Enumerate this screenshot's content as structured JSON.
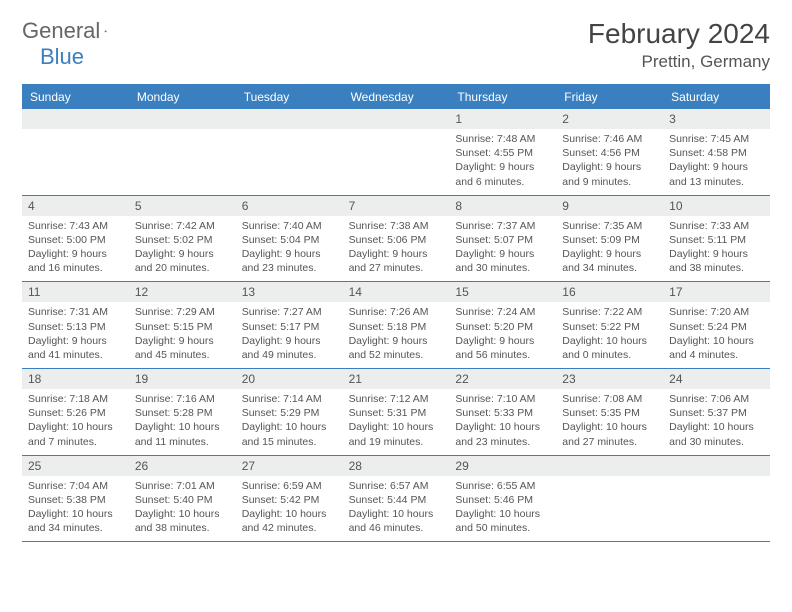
{
  "logo": {
    "text1": "General",
    "text2": "Blue"
  },
  "title": {
    "month": "February 2024",
    "location": "Prettin, Germany"
  },
  "colors": {
    "accent": "#3a7fbf",
    "headerRow": "#eceded",
    "text": "#555555",
    "bg": "#ffffff"
  },
  "dayNames": [
    "Sunday",
    "Monday",
    "Tuesday",
    "Wednesday",
    "Thursday",
    "Friday",
    "Saturday"
  ],
  "weeks": [
    [
      {
        "n": "",
        "l1": "",
        "l2": "",
        "l3": "",
        "l4": ""
      },
      {
        "n": "",
        "l1": "",
        "l2": "",
        "l3": "",
        "l4": ""
      },
      {
        "n": "",
        "l1": "",
        "l2": "",
        "l3": "",
        "l4": ""
      },
      {
        "n": "",
        "l1": "",
        "l2": "",
        "l3": "",
        "l4": ""
      },
      {
        "n": "1",
        "l1": "Sunrise: 7:48 AM",
        "l2": "Sunset: 4:55 PM",
        "l3": "Daylight: 9 hours",
        "l4": "and 6 minutes."
      },
      {
        "n": "2",
        "l1": "Sunrise: 7:46 AM",
        "l2": "Sunset: 4:56 PM",
        "l3": "Daylight: 9 hours",
        "l4": "and 9 minutes."
      },
      {
        "n": "3",
        "l1": "Sunrise: 7:45 AM",
        "l2": "Sunset: 4:58 PM",
        "l3": "Daylight: 9 hours",
        "l4": "and 13 minutes."
      }
    ],
    [
      {
        "n": "4",
        "l1": "Sunrise: 7:43 AM",
        "l2": "Sunset: 5:00 PM",
        "l3": "Daylight: 9 hours",
        "l4": "and 16 minutes."
      },
      {
        "n": "5",
        "l1": "Sunrise: 7:42 AM",
        "l2": "Sunset: 5:02 PM",
        "l3": "Daylight: 9 hours",
        "l4": "and 20 minutes."
      },
      {
        "n": "6",
        "l1": "Sunrise: 7:40 AM",
        "l2": "Sunset: 5:04 PM",
        "l3": "Daylight: 9 hours",
        "l4": "and 23 minutes."
      },
      {
        "n": "7",
        "l1": "Sunrise: 7:38 AM",
        "l2": "Sunset: 5:06 PM",
        "l3": "Daylight: 9 hours",
        "l4": "and 27 minutes."
      },
      {
        "n": "8",
        "l1": "Sunrise: 7:37 AM",
        "l2": "Sunset: 5:07 PM",
        "l3": "Daylight: 9 hours",
        "l4": "and 30 minutes."
      },
      {
        "n": "9",
        "l1": "Sunrise: 7:35 AM",
        "l2": "Sunset: 5:09 PM",
        "l3": "Daylight: 9 hours",
        "l4": "and 34 minutes."
      },
      {
        "n": "10",
        "l1": "Sunrise: 7:33 AM",
        "l2": "Sunset: 5:11 PM",
        "l3": "Daylight: 9 hours",
        "l4": "and 38 minutes."
      }
    ],
    [
      {
        "n": "11",
        "l1": "Sunrise: 7:31 AM",
        "l2": "Sunset: 5:13 PM",
        "l3": "Daylight: 9 hours",
        "l4": "and 41 minutes."
      },
      {
        "n": "12",
        "l1": "Sunrise: 7:29 AM",
        "l2": "Sunset: 5:15 PM",
        "l3": "Daylight: 9 hours",
        "l4": "and 45 minutes."
      },
      {
        "n": "13",
        "l1": "Sunrise: 7:27 AM",
        "l2": "Sunset: 5:17 PM",
        "l3": "Daylight: 9 hours",
        "l4": "and 49 minutes."
      },
      {
        "n": "14",
        "l1": "Sunrise: 7:26 AM",
        "l2": "Sunset: 5:18 PM",
        "l3": "Daylight: 9 hours",
        "l4": "and 52 minutes."
      },
      {
        "n": "15",
        "l1": "Sunrise: 7:24 AM",
        "l2": "Sunset: 5:20 PM",
        "l3": "Daylight: 9 hours",
        "l4": "and 56 minutes."
      },
      {
        "n": "16",
        "l1": "Sunrise: 7:22 AM",
        "l2": "Sunset: 5:22 PM",
        "l3": "Daylight: 10 hours",
        "l4": "and 0 minutes."
      },
      {
        "n": "17",
        "l1": "Sunrise: 7:20 AM",
        "l2": "Sunset: 5:24 PM",
        "l3": "Daylight: 10 hours",
        "l4": "and 4 minutes."
      }
    ],
    [
      {
        "n": "18",
        "l1": "Sunrise: 7:18 AM",
        "l2": "Sunset: 5:26 PM",
        "l3": "Daylight: 10 hours",
        "l4": "and 7 minutes."
      },
      {
        "n": "19",
        "l1": "Sunrise: 7:16 AM",
        "l2": "Sunset: 5:28 PM",
        "l3": "Daylight: 10 hours",
        "l4": "and 11 minutes."
      },
      {
        "n": "20",
        "l1": "Sunrise: 7:14 AM",
        "l2": "Sunset: 5:29 PM",
        "l3": "Daylight: 10 hours",
        "l4": "and 15 minutes."
      },
      {
        "n": "21",
        "l1": "Sunrise: 7:12 AM",
        "l2": "Sunset: 5:31 PM",
        "l3": "Daylight: 10 hours",
        "l4": "and 19 minutes."
      },
      {
        "n": "22",
        "l1": "Sunrise: 7:10 AM",
        "l2": "Sunset: 5:33 PM",
        "l3": "Daylight: 10 hours",
        "l4": "and 23 minutes."
      },
      {
        "n": "23",
        "l1": "Sunrise: 7:08 AM",
        "l2": "Sunset: 5:35 PM",
        "l3": "Daylight: 10 hours",
        "l4": "and 27 minutes."
      },
      {
        "n": "24",
        "l1": "Sunrise: 7:06 AM",
        "l2": "Sunset: 5:37 PM",
        "l3": "Daylight: 10 hours",
        "l4": "and 30 minutes."
      }
    ],
    [
      {
        "n": "25",
        "l1": "Sunrise: 7:04 AM",
        "l2": "Sunset: 5:38 PM",
        "l3": "Daylight: 10 hours",
        "l4": "and 34 minutes."
      },
      {
        "n": "26",
        "l1": "Sunrise: 7:01 AM",
        "l2": "Sunset: 5:40 PM",
        "l3": "Daylight: 10 hours",
        "l4": "and 38 minutes."
      },
      {
        "n": "27",
        "l1": "Sunrise: 6:59 AM",
        "l2": "Sunset: 5:42 PM",
        "l3": "Daylight: 10 hours",
        "l4": "and 42 minutes."
      },
      {
        "n": "28",
        "l1": "Sunrise: 6:57 AM",
        "l2": "Sunset: 5:44 PM",
        "l3": "Daylight: 10 hours",
        "l4": "and 46 minutes."
      },
      {
        "n": "29",
        "l1": "Sunrise: 6:55 AM",
        "l2": "Sunset: 5:46 PM",
        "l3": "Daylight: 10 hours",
        "l4": "and 50 minutes."
      },
      {
        "n": "",
        "l1": "",
        "l2": "",
        "l3": "",
        "l4": ""
      },
      {
        "n": "",
        "l1": "",
        "l2": "",
        "l3": "",
        "l4": ""
      }
    ]
  ]
}
